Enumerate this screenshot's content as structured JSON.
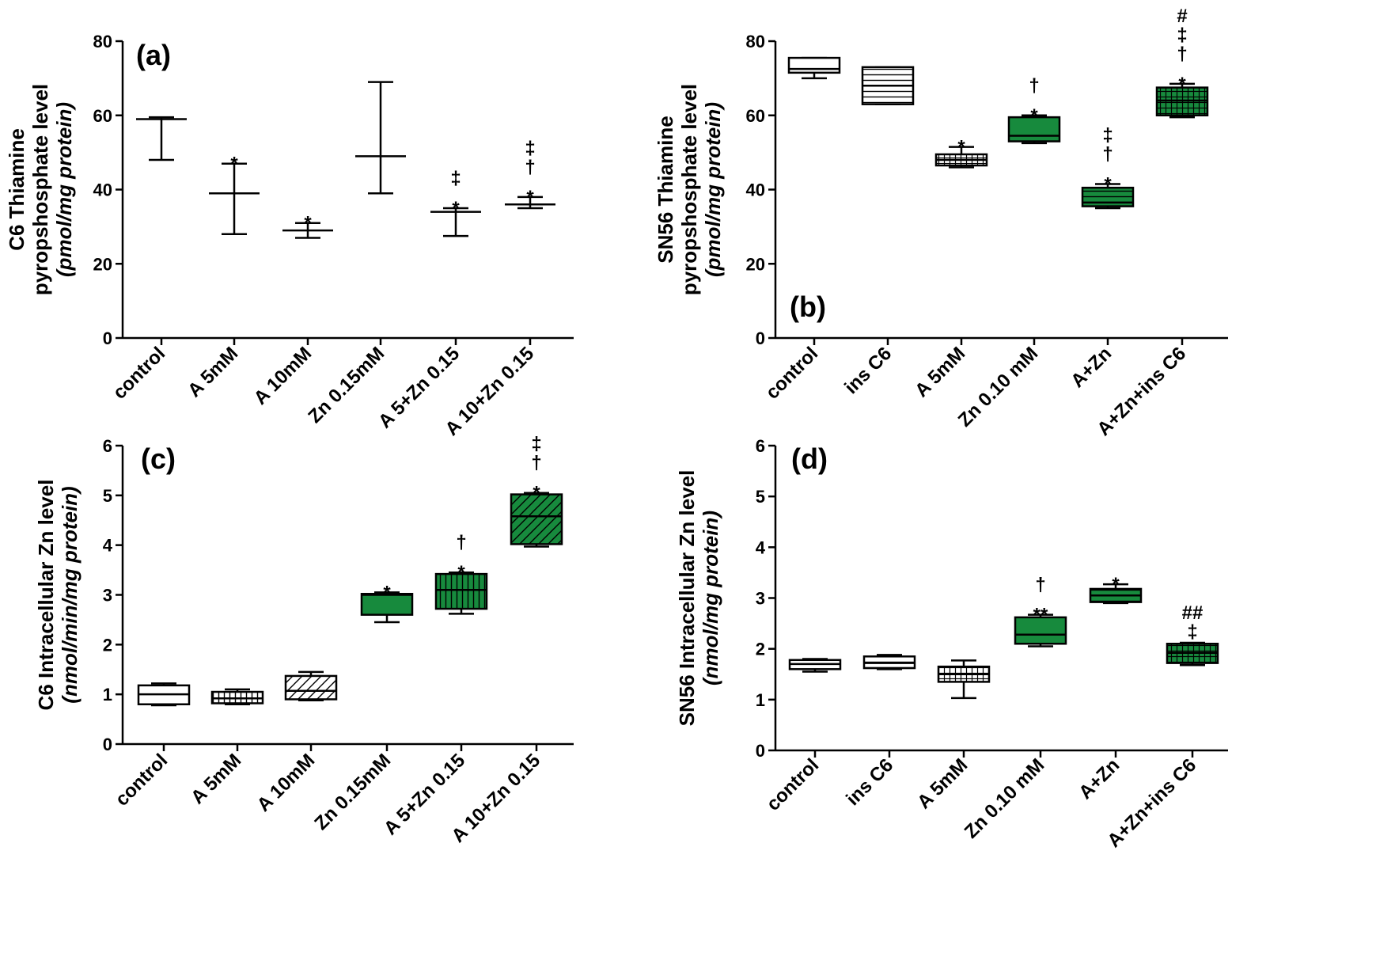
{
  "chart_data": [
    {
      "type": "boxplot",
      "panel_label": "(a)",
      "ylabel_lines": [
        "C6 Thiamine",
        "pyropshosphate level"
      ],
      "ylabel_unit": "(pmol/mg protein)",
      "ylim": [
        0,
        80
      ],
      "yticks": [
        "0",
        "20",
        "40",
        "60",
        "80"
      ],
      "categories": [
        "control",
        "A 5mM",
        "A 10mM",
        "Zn 0.15mM",
        "A 5+Zn 0.15",
        "A 10+Zn 0.15"
      ],
      "boxes": [
        {
          "min": 48,
          "q1": 59,
          "median": 59,
          "q3": 59,
          "max": 59.5,
          "fill": "none",
          "annotation": []
        },
        {
          "min": 28,
          "q1": 39,
          "median": 39,
          "q3": 39,
          "max": 47,
          "fill": "none",
          "annotation": [
            "*"
          ]
        },
        {
          "min": 27,
          "q1": 29,
          "median": 29,
          "q3": 29,
          "max": 31,
          "fill": "none",
          "annotation": [
            "*"
          ]
        },
        {
          "min": 39,
          "q1": 49,
          "median": 49,
          "q3": 49,
          "max": 69,
          "fill": "none",
          "annotation": []
        },
        {
          "min": 27.5,
          "q1": 34,
          "median": 34,
          "q3": 34,
          "max": 35,
          "fill": "none",
          "annotation": [
            "*",
            "‡"
          ]
        },
        {
          "min": 35,
          "q1": 36,
          "median": 36,
          "q3": 36,
          "max": 38,
          "fill": "none",
          "annotation": [
            "*",
            "†",
            "‡"
          ]
        }
      ]
    },
    {
      "type": "boxplot",
      "panel_label": "(b)",
      "ylabel_lines": [
        "SN56 Thiamine",
        "pyropshosphate level"
      ],
      "ylabel_unit": "(pmol/mg protein)",
      "ylim": [
        0,
        80
      ],
      "yticks": [
        "0",
        "20",
        "40",
        "60",
        "80"
      ],
      "categories": [
        "control",
        "ins C6",
        "A 5mM",
        "Zn 0.10 mM",
        "A+Zn",
        "A+Zn+ins C6"
      ],
      "boxes": [
        {
          "min": 70,
          "q1": 71.5,
          "median": 72.5,
          "q3": 75.5,
          "max": 75.5,
          "fill": "white",
          "annotation": []
        },
        {
          "min": 63,
          "q1": 63,
          "median": 68,
          "q3": 73,
          "max": 73,
          "fill": "hlines",
          "annotation": []
        },
        {
          "min": 46,
          "q1": 46.5,
          "median": 48,
          "q3": 49.5,
          "max": 51.5,
          "fill": "grid",
          "annotation": [
            "*"
          ]
        },
        {
          "min": 52.5,
          "q1": 53,
          "median": 54.5,
          "q3": 59.5,
          "max": 60,
          "fill": "green",
          "annotation": [
            "*",
            "†"
          ]
        },
        {
          "min": 35,
          "q1": 35.5,
          "median": 36.5,
          "q3": 40.5,
          "max": 41.5,
          "fill": "green-hlines",
          "annotation": [
            "*",
            "†",
            "‡"
          ]
        },
        {
          "min": 59.5,
          "q1": 60,
          "median": 64,
          "q3": 67.5,
          "max": 68.5,
          "fill": "green-grid",
          "annotation": [
            "*",
            "†",
            "‡",
            "#"
          ]
        }
      ]
    },
    {
      "type": "boxplot",
      "panel_label": "(c)",
      "ylabel_lines": [
        "C6 Intracellular Zn level"
      ],
      "ylabel_unit": "(nmol/min/mg protein)",
      "ylim": [
        0,
        6
      ],
      "yticks": [
        "0",
        "1",
        "2",
        "3",
        "4",
        "5",
        "6"
      ],
      "categories": [
        "control",
        "A 5mM",
        "A 10mM",
        "Zn 0.15mM",
        "A 5+Zn 0.15",
        "A 10+Zn 0.15"
      ],
      "boxes": [
        {
          "min": 0.78,
          "q1": 0.8,
          "median": 1.0,
          "q3": 1.18,
          "max": 1.22,
          "fill": "white",
          "annotation": []
        },
        {
          "min": 0.8,
          "q1": 0.82,
          "median": 0.92,
          "q3": 1.05,
          "max": 1.1,
          "fill": "vlines",
          "annotation": []
        },
        {
          "min": 0.88,
          "q1": 0.9,
          "median": 1.07,
          "q3": 1.37,
          "max": 1.45,
          "fill": "diag",
          "annotation": []
        },
        {
          "min": 2.45,
          "q1": 2.6,
          "median": 3.0,
          "q3": 3.02,
          "max": 3.05,
          "fill": "green",
          "annotation": [
            "*"
          ]
        },
        {
          "min": 2.62,
          "q1": 2.72,
          "median": 3.1,
          "q3": 3.42,
          "max": 3.45,
          "fill": "green-vlines",
          "annotation": [
            "*",
            "†"
          ]
        },
        {
          "min": 3.97,
          "q1": 4.02,
          "median": 4.58,
          "q3": 5.02,
          "max": 5.05,
          "fill": "green-diag",
          "annotation": [
            "*",
            "†",
            "‡"
          ]
        }
      ]
    },
    {
      "type": "boxplot",
      "panel_label": "(d)",
      "ylabel_lines": [
        "SN56 Intracellular Zn level"
      ],
      "ylabel_unit": "(nmol/mg protein)",
      "ylim": [
        0,
        6
      ],
      "yticks": [
        "0",
        "1",
        "2",
        "3",
        "4",
        "5",
        "6"
      ],
      "categories": [
        "control",
        "ins C6",
        "A 5mM",
        "Zn 0.10 mM",
        "A+Zn",
        "A+Zn+ins C6"
      ],
      "boxes": [
        {
          "min": 1.55,
          "q1": 1.6,
          "median": 1.7,
          "q3": 1.78,
          "max": 1.8,
          "fill": "white",
          "annotation": []
        },
        {
          "min": 1.6,
          "q1": 1.62,
          "median": 1.72,
          "q3": 1.85,
          "max": 1.88,
          "fill": "hlines",
          "annotation": []
        },
        {
          "min": 1.03,
          "q1": 1.35,
          "median": 1.5,
          "q3": 1.65,
          "max": 1.77,
          "fill": "grid",
          "annotation": []
        },
        {
          "min": 2.05,
          "q1": 2.1,
          "median": 2.28,
          "q3": 2.62,
          "max": 2.67,
          "fill": "green",
          "annotation": [
            "**",
            "†"
          ]
        },
        {
          "min": 2.9,
          "q1": 2.92,
          "median": 3.05,
          "q3": 3.18,
          "max": 3.27,
          "fill": "green-hlines",
          "annotation": [
            "*"
          ]
        },
        {
          "min": 1.68,
          "q1": 1.72,
          "median": 1.92,
          "q3": 2.1,
          "max": 2.12,
          "fill": "green-grid",
          "annotation": [
            "‡",
            "##"
          ]
        }
      ]
    }
  ]
}
